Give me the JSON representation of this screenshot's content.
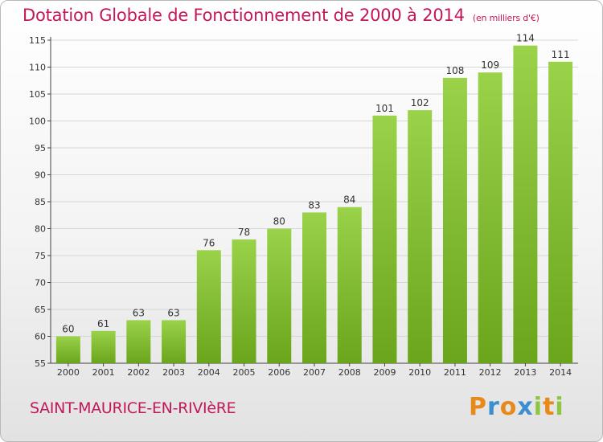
{
  "header": {
    "title": "Dotation Globale de Fonctionnement de 2000 à 2014",
    "unit": "(en milliers d'€)"
  },
  "footer": {
    "commune": "SAINT-MAURICE-EN-RIVIèRE",
    "logo_letters": [
      "P",
      "r",
      "o",
      "x",
      "i",
      "t",
      "i"
    ],
    "logo_colors": [
      "#e8891c",
      "#3b8fd0",
      "#e8891c",
      "#3b8fd0",
      "#8dc63f",
      "#e8891c",
      "#8dc63f"
    ]
  },
  "colors": {
    "bar_light": "#9ad24a",
    "bar_dark": "#6aa51c",
    "grid": "#d6d6d6",
    "axis": "#444444"
  },
  "chart_data": {
    "type": "bar",
    "title": "Dotation Globale de Fonctionnement de 2000 à 2014",
    "subtitle": "(en milliers d'€)",
    "xlabel": "",
    "ylabel": "",
    "categories": [
      "2000",
      "2001",
      "2002",
      "2003",
      "2004",
      "2005",
      "2006",
      "2007",
      "2008",
      "2009",
      "2010",
      "2011",
      "2012",
      "2013",
      "2014"
    ],
    "values": [
      60,
      61,
      63,
      63,
      76,
      78,
      80,
      83,
      84,
      101,
      102,
      108,
      109,
      114,
      111
    ],
    "ylim": [
      55,
      115
    ],
    "yticks": [
      55,
      60,
      65,
      70,
      75,
      80,
      85,
      90,
      95,
      100,
      105,
      110,
      115
    ],
    "grid": true
  }
}
